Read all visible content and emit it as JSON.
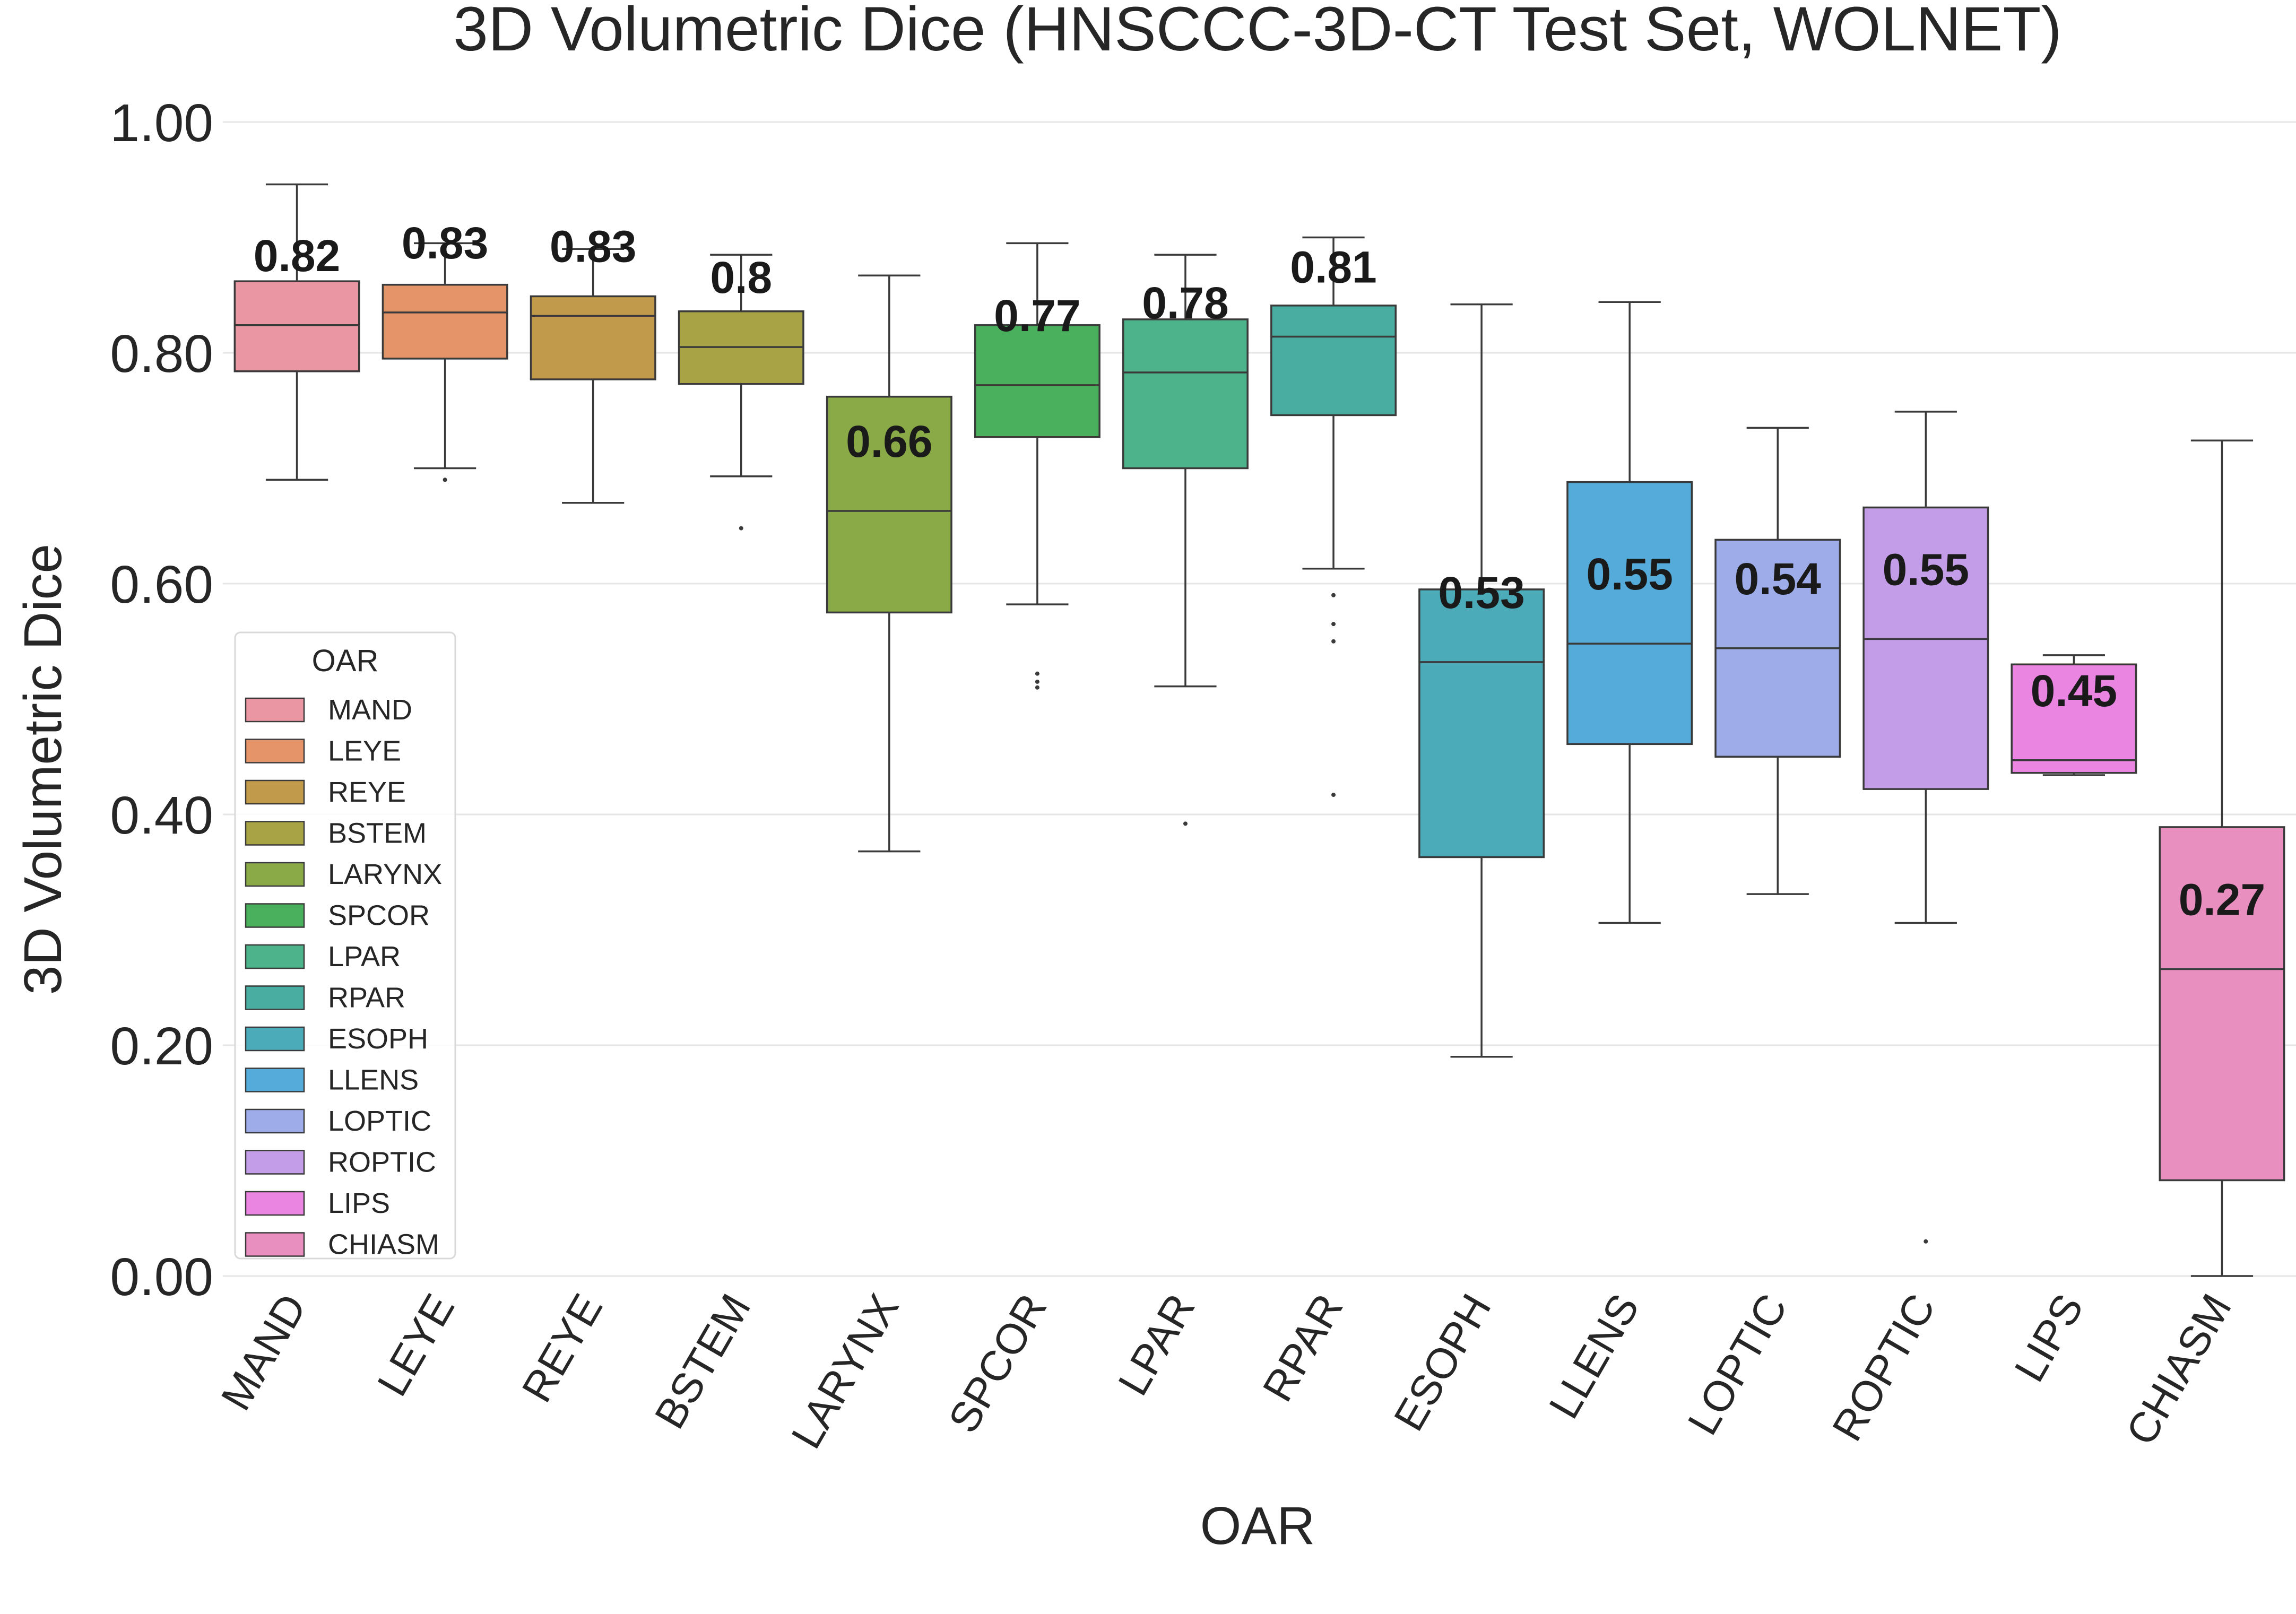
{
  "chart_data": {
    "type": "box",
    "title": "3D Volumetric Dice (HNSCCC-3D-CT Test Set, WOLNET)",
    "xlabel": "OAR",
    "ylabel": "3D Volumetric Dice",
    "ylim": [
      0,
      1
    ],
    "yticks": [
      "0.00",
      "0.20",
      "0.40",
      "0.60",
      "0.80",
      "1.00"
    ],
    "grid": true,
    "legend": {
      "title": "OAR",
      "placement": "lower-left"
    },
    "series": [
      {
        "name": "MAND",
        "color": "#ea96a3",
        "whisker_low": 0.69,
        "q1": 0.784,
        "median": 0.824,
        "q3": 0.862,
        "whisker_high": 0.946,
        "mean_label": "0.82",
        "outliers": []
      },
      {
        "name": "LEYE",
        "color": "#e59368",
        "whisker_low": 0.7,
        "q1": 0.795,
        "median": 0.835,
        "q3": 0.859,
        "whisker_high": 0.895,
        "mean_label": "0.83",
        "outliers": [
          0.69
        ]
      },
      {
        "name": "REYE",
        "color": "#c19a4c",
        "whisker_low": 0.67,
        "q1": 0.777,
        "median": 0.832,
        "q3": 0.849,
        "whisker_high": 0.89,
        "mean_label": "0.83",
        "outliers": []
      },
      {
        "name": "BSTEM",
        "color": "#a8a446",
        "whisker_low": 0.693,
        "q1": 0.773,
        "median": 0.805,
        "q3": 0.836,
        "whisker_high": 0.885,
        "mean_label": "0.8",
        "outliers": [
          0.648
        ]
      },
      {
        "name": "LARYNX",
        "color": "#8aa947",
        "whisker_low": 0.368,
        "q1": 0.575,
        "median": 0.663,
        "q3": 0.762,
        "whisker_high": 0.867,
        "mean_label": "0.66",
        "outliers": []
      },
      {
        "name": "SPCOR",
        "color": "#4ab05d",
        "whisker_low": 0.582,
        "q1": 0.727,
        "median": 0.772,
        "q3": 0.824,
        "whisker_high": 0.895,
        "mean_label": "0.77",
        "outliers": [
          0.51,
          0.515,
          0.522
        ]
      },
      {
        "name": "LPAR",
        "color": "#4cb38a",
        "whisker_low": 0.511,
        "q1": 0.7,
        "median": 0.783,
        "q3": 0.829,
        "whisker_high": 0.885,
        "mean_label": "0.78",
        "outliers": [
          0.392
        ]
      },
      {
        "name": "RPAR",
        "color": "#4aada2",
        "whisker_low": 0.613,
        "q1": 0.746,
        "median": 0.814,
        "q3": 0.841,
        "whisker_high": 0.9,
        "mean_label": "0.81",
        "outliers": [
          0.59,
          0.565,
          0.55,
          0.417
        ]
      },
      {
        "name": "ESOPH",
        "color": "#4babb9",
        "whisker_low": 0.19,
        "q1": 0.363,
        "median": 0.532,
        "q3": 0.595,
        "whisker_high": 0.842,
        "mean_label": "0.53",
        "outliers": []
      },
      {
        "name": "LLENS",
        "color": "#55acda",
        "whisker_low": 0.306,
        "q1": 0.461,
        "median": 0.548,
        "q3": 0.688,
        "whisker_high": 0.844,
        "mean_label": "0.55",
        "outliers": []
      },
      {
        "name": "LOPTIC",
        "color": "#9eacea",
        "whisker_low": 0.331,
        "q1": 0.45,
        "median": 0.544,
        "q3": 0.638,
        "whisker_high": 0.735,
        "mean_label": "0.54",
        "outliers": []
      },
      {
        "name": "ROPTIC",
        "color": "#c49de8",
        "whisker_low": 0.306,
        "q1": 0.422,
        "median": 0.552,
        "q3": 0.666,
        "whisker_high": 0.749,
        "mean_label": "0.55",
        "outliers": [
          0.03
        ]
      },
      {
        "name": "LIPS",
        "color": "#ea85e2",
        "whisker_low": 0.434,
        "q1": 0.436,
        "median": 0.447,
        "q3": 0.53,
        "whisker_high": 0.538,
        "mean_label": "0.45",
        "outliers": []
      },
      {
        "name": "CHIASM",
        "color": "#e98fc0",
        "whisker_low": 0.0,
        "q1": 0.083,
        "median": 0.266,
        "q3": 0.389,
        "whisker_high": 0.724,
        "mean_label": "0.27",
        "outliers": []
      }
    ]
  }
}
